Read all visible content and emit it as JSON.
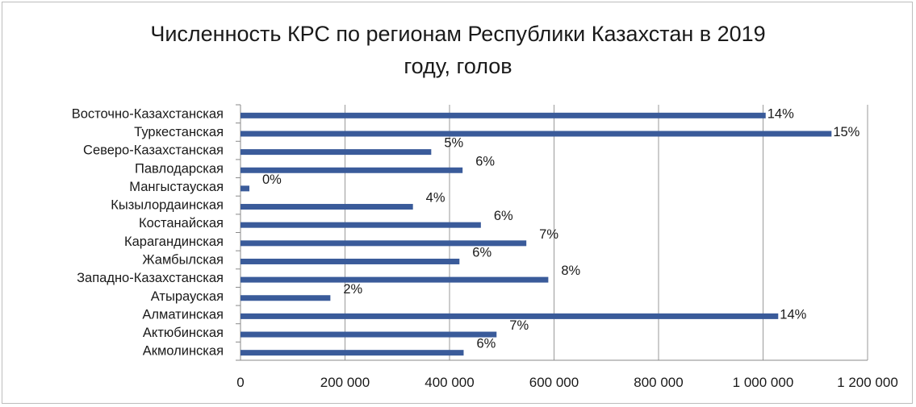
{
  "chart_data": {
    "type": "bar",
    "orientation": "horizontal",
    "title_line1": "Численность КРС по регионам Республики Казахстан в 2019",
    "title_line2": "году, голов",
    "categories": [
      "Восточно-Казахстанская",
      "Туркестанская",
      "Северо-Казахстанская",
      "Павлодарская",
      "Мангыстауская",
      "Кызылордаинская",
      "Костанайская",
      "Карагандинская",
      "Жамбылская",
      "Западно-Казахстанская",
      "Атырауская",
      "Алматинская",
      "Актюбинская",
      "Акмолинская"
    ],
    "values": [
      1005000,
      1131000,
      365000,
      425000,
      17000,
      330000,
      460000,
      547000,
      419000,
      589000,
      172000,
      1029000,
      490000,
      427000
    ],
    "data_labels": [
      "14%",
      "15%",
      "5%",
      "6%",
      "0%",
      "4%",
      "6%",
      "7%",
      "6%",
      "8%",
      "2%",
      "14%",
      "7%",
      "6%"
    ],
    "xlim": [
      0,
      1200000
    ],
    "xticks": [
      0,
      200000,
      400000,
      600000,
      800000,
      1000000,
      1200000
    ],
    "xtick_labels": [
      "0",
      "200 000",
      "400 000",
      "600 000",
      "800 000",
      "1 000 000",
      "1 200 000"
    ],
    "grid": "vertical",
    "legend": "none",
    "bar_color": "#3a5b9a",
    "grid_color": "#9a9a9a"
  }
}
